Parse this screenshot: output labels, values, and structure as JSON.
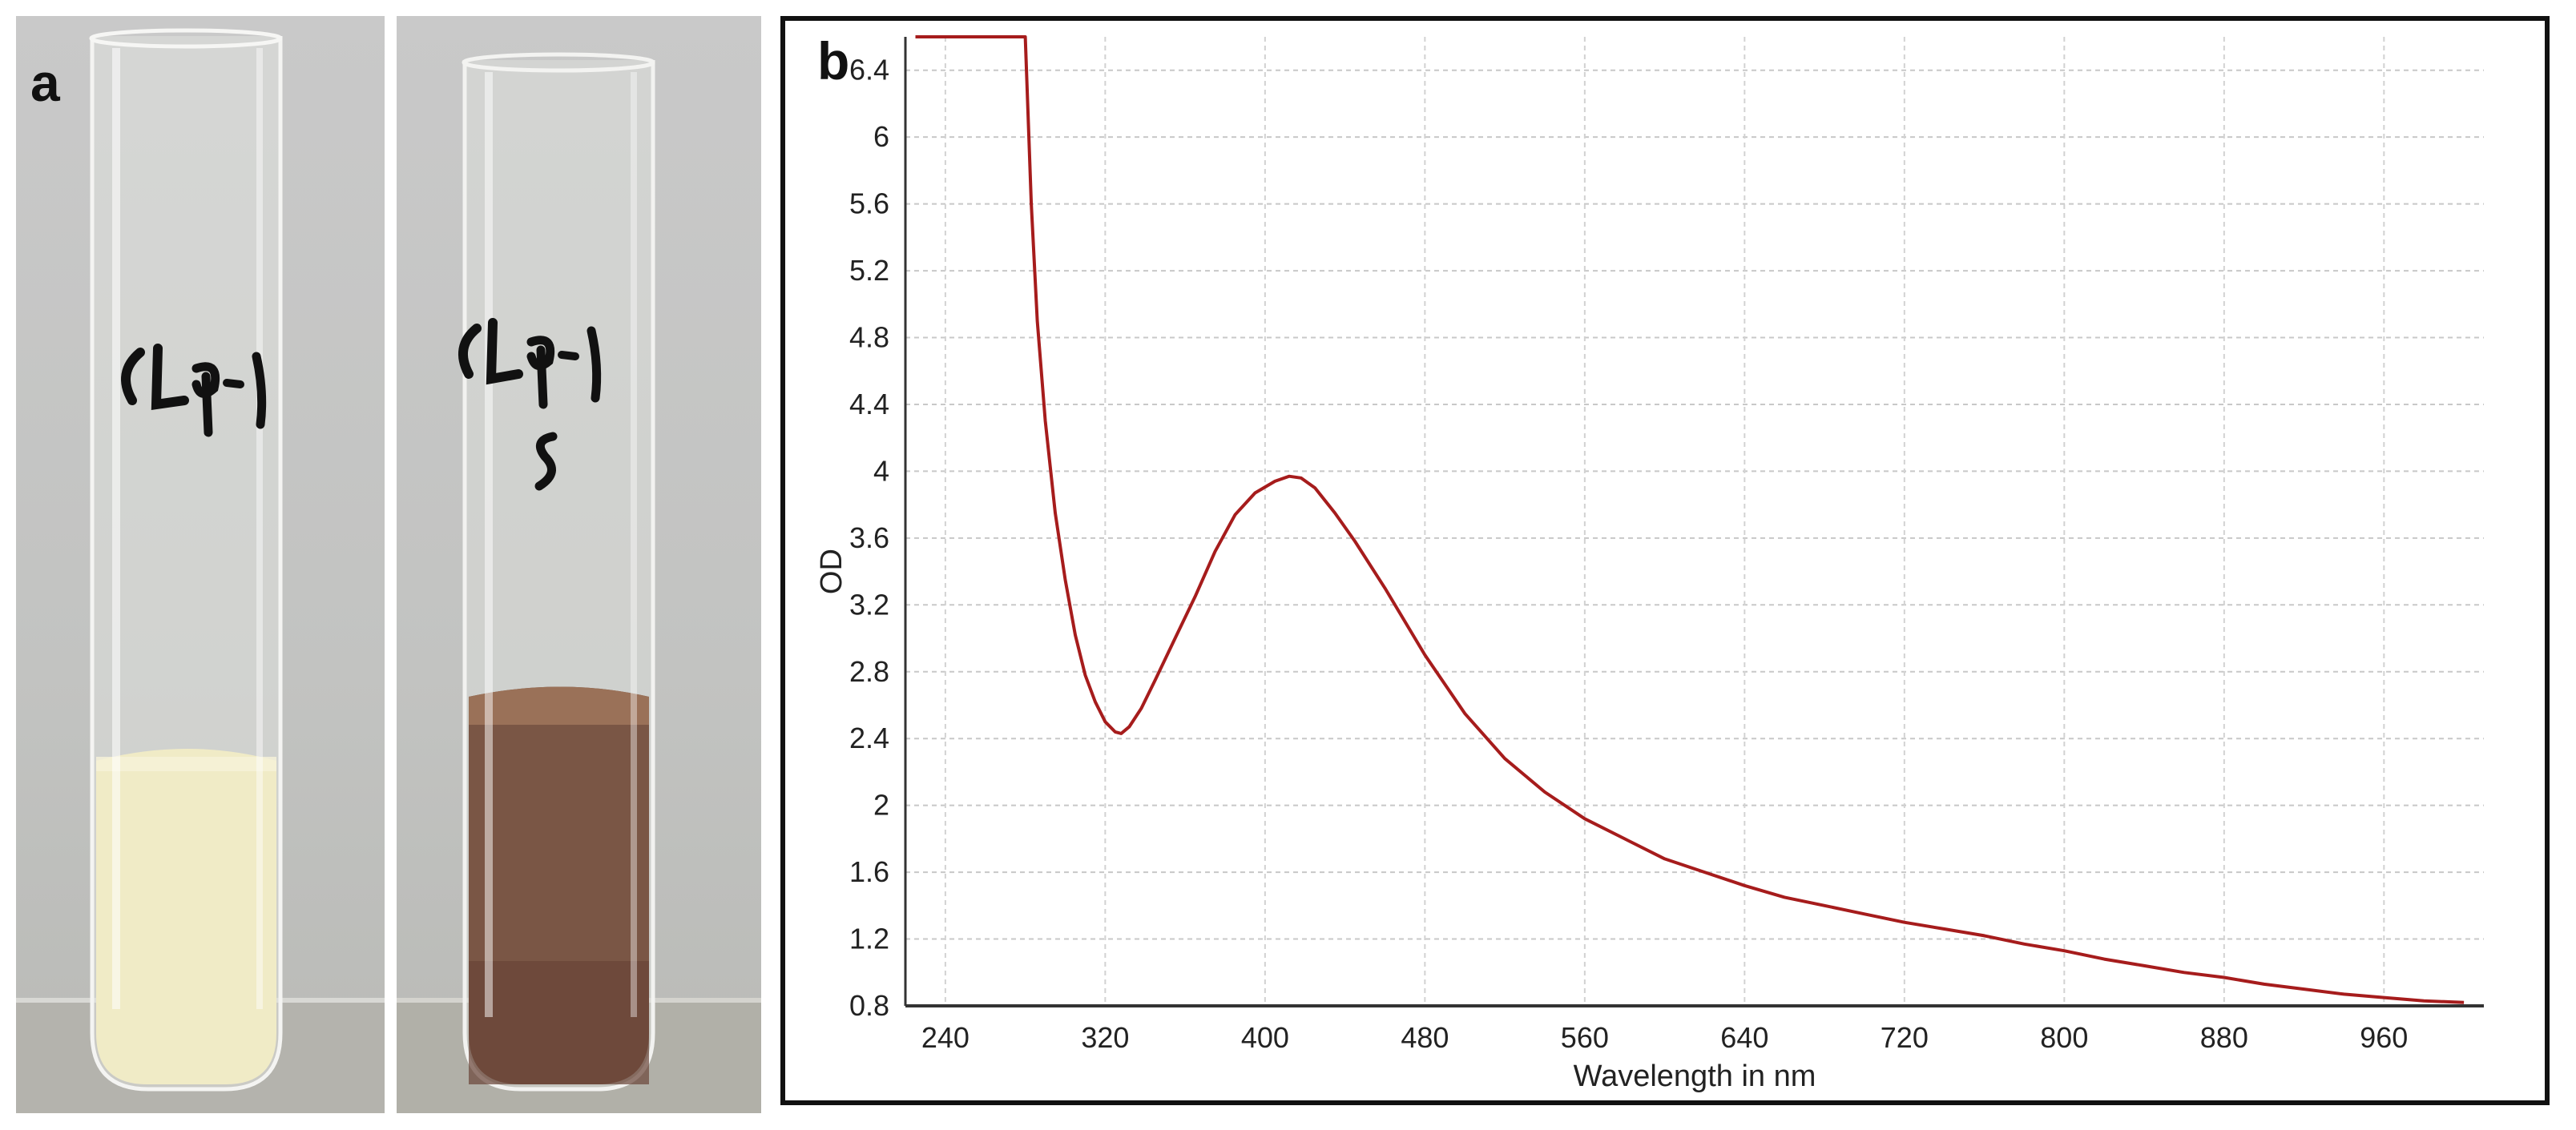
{
  "panels": {
    "a": {
      "letter": "a",
      "tube_labels": [
        "CLP-1",
        "CLP-1 S"
      ]
    },
    "b": {
      "letter": "b"
    }
  },
  "chart_data": {
    "type": "line",
    "title": "",
    "xlabel": "Wavelength in nm",
    "ylabel": "OD",
    "xlim": [
      220,
      1010
    ],
    "ylim": [
      0.8,
      6.6
    ],
    "xticks": [
      240,
      320,
      400,
      480,
      560,
      640,
      720,
      800,
      880,
      960
    ],
    "yticks": [
      0.8,
      1.2,
      1.6,
      2,
      2.4,
      2.8,
      3.2,
      3.6,
      4,
      4.4,
      4.8,
      5.2,
      5.6,
      6,
      6.4
    ],
    "grid": true,
    "line_color": "#a61c1c",
    "series": [
      {
        "x": [
          225,
          240,
          260,
          280,
          283,
          286,
          290,
          295,
          300,
          305,
          310,
          315,
          320,
          325,
          328,
          332,
          338,
          345,
          355,
          365,
          375,
          385,
          395,
          405,
          412,
          418,
          425,
          435,
          445,
          460,
          480,
          500,
          520,
          540,
          560,
          580,
          600,
          620,
          640,
          660,
          680,
          700,
          720,
          740,
          760,
          780,
          800,
          820,
          840,
          860,
          880,
          900,
          920,
          940,
          960,
          980,
          1000
        ],
        "y": [
          6.6,
          6.6,
          6.6,
          6.6,
          5.6,
          4.9,
          4.3,
          3.75,
          3.35,
          3.02,
          2.78,
          2.62,
          2.5,
          2.44,
          2.43,
          2.47,
          2.58,
          2.75,
          3.0,
          3.25,
          3.52,
          3.74,
          3.87,
          3.94,
          3.97,
          3.96,
          3.9,
          3.75,
          3.58,
          3.3,
          2.9,
          2.55,
          2.28,
          2.08,
          1.92,
          1.8,
          1.68,
          1.6,
          1.52,
          1.45,
          1.4,
          1.35,
          1.3,
          1.26,
          1.22,
          1.17,
          1.13,
          1.08,
          1.04,
          1.0,
          0.97,
          0.93,
          0.9,
          0.87,
          0.85,
          0.83,
          0.82
        ]
      }
    ]
  }
}
